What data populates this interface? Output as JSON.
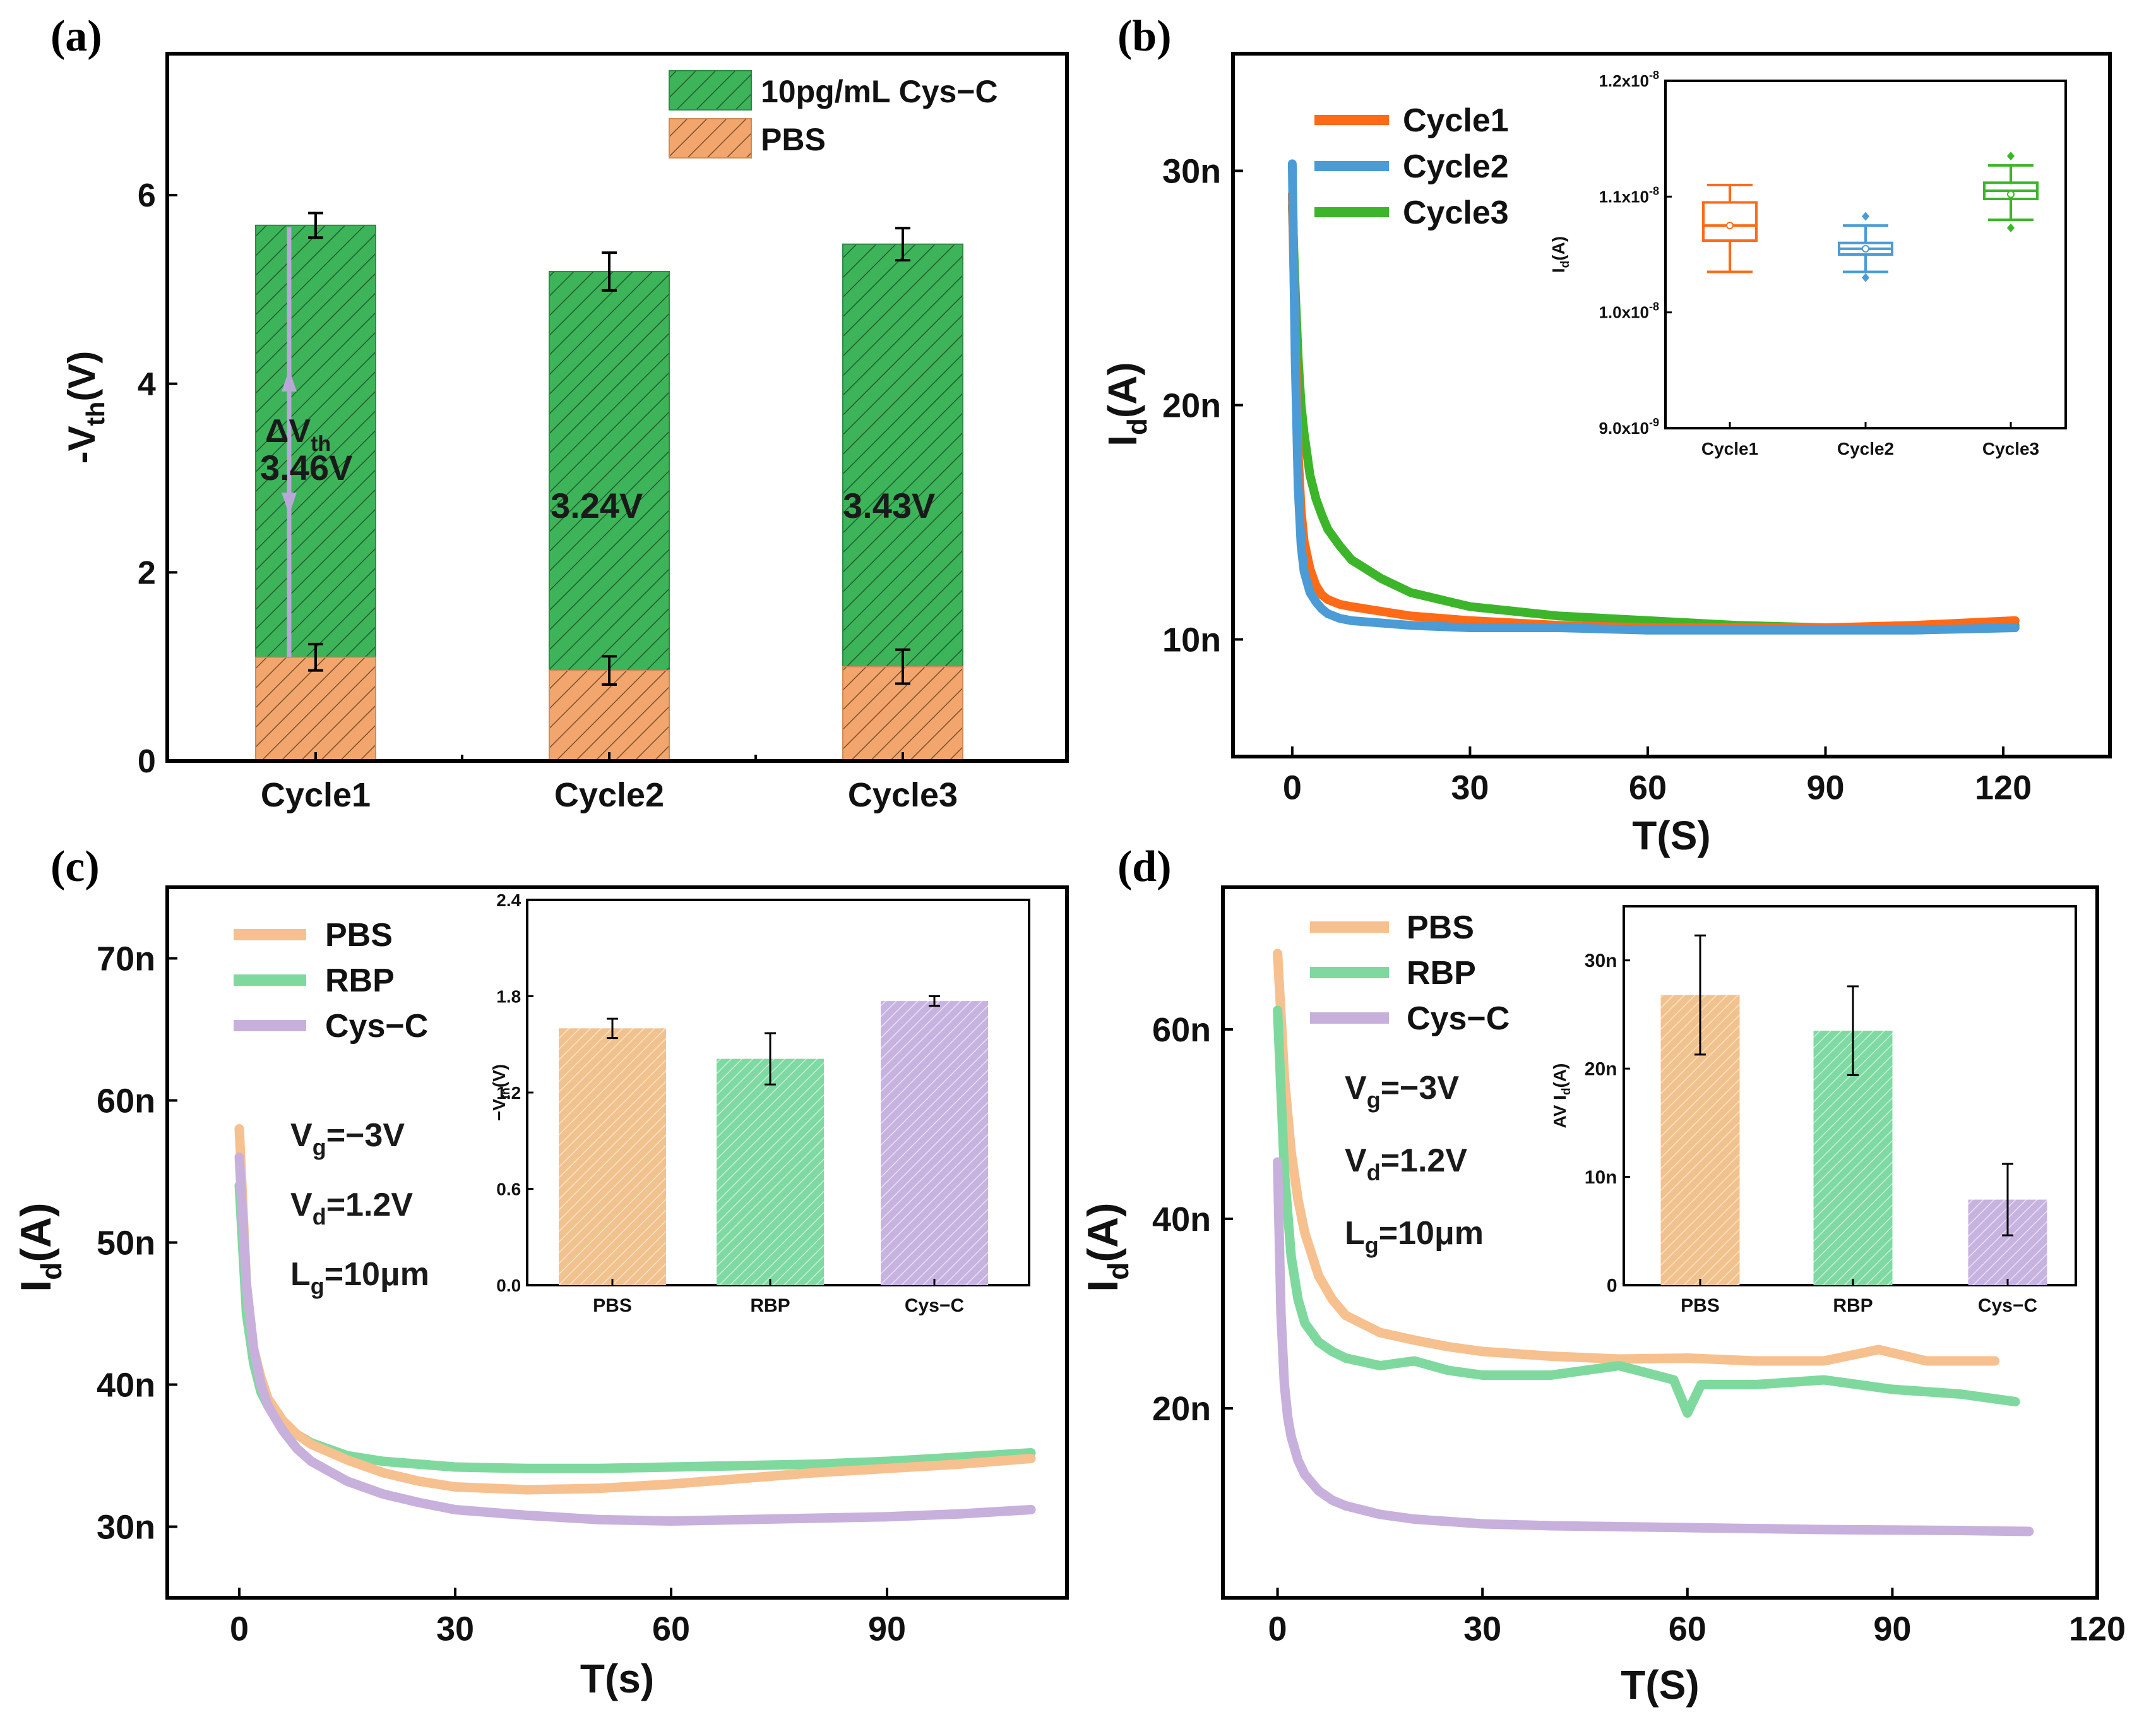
{
  "figure": {
    "panels": [
      "(a)",
      "(b)",
      "(c)",
      "(d)"
    ],
    "annotations_a": {
      "delta_label": "ΔV",
      "delta_sub": "th",
      "cycle1": "3.46V",
      "cycle2": "3.24V",
      "cycle3": "3.43V"
    },
    "conditions": {
      "vg": "V",
      "vg_sub": "g",
      "vg_val": "=−3V",
      "vd": "V",
      "vd_sub": "d",
      "vd_val": "=1.2V",
      "lg": "L",
      "lg_sub": "g",
      "lg_val": "=10μm"
    }
  },
  "colors": {
    "cys_green": "#3db35a",
    "pbs_orange": "#f2a66d",
    "cycle1": "#ff6a17",
    "cycle2": "#4a9bd6",
    "cycle3": "#3cb52a",
    "pbs_line": "#f7c08f",
    "rbp_line": "#7fd99e",
    "cysc_line": "#c7b0dc",
    "pbs_bar": "#f2c28e",
    "rbp_bar": "#7fd9a3",
    "cysc_bar": "#c7b3e0"
  },
  "chart_data": [
    {
      "id": "a",
      "type": "bar",
      "title": "",
      "xlabel": "",
      "ylabel": "-V",
      "ylabel_sub": "th",
      "ylabel_tail": "(V)",
      "categories": [
        "Cycle1",
        "Cycle2",
        "Cycle3"
      ],
      "ylim": [
        0,
        7.5
      ],
      "yticks": [
        0,
        2,
        4,
        6
      ],
      "ytick_labels": [
        "0",
        "2",
        "4",
        "6"
      ],
      "series": [
        {
          "name": "PBS",
          "values": [
            1.1,
            0.96,
            1.0
          ],
          "errors": [
            0.14,
            0.15,
            0.18
          ]
        },
        {
          "name": "10pg/mL Cys−C",
          "values": [
            5.68,
            5.19,
            5.48
          ],
          "errors": [
            0.13,
            0.2,
            0.17
          ]
        }
      ],
      "legend": [
        "10pg/mL Cys−C",
        "PBS"
      ]
    },
    {
      "id": "b",
      "type": "line",
      "xlabel": "T(S)",
      "ylabel": "I",
      "ylabel_sub": "d",
      "ylabel_tail": "(A)",
      "xlim": [
        -10,
        138
      ],
      "ylim": [
        5,
        35
      ],
      "xticks": [
        0,
        30,
        60,
        90,
        120
      ],
      "yticks": [
        10,
        20,
        30
      ],
      "ytick_labels": [
        "10n",
        "20n",
        "30n"
      ],
      "series": [
        {
          "name": "Cycle1",
          "x": [
            0,
            0.5,
            1,
            1.5,
            2,
            3,
            4,
            5,
            6,
            8,
            10,
            15,
            20,
            30,
            45,
            60,
            75,
            90,
            105,
            122
          ],
          "y": [
            29.0,
            23.0,
            18.0,
            15.5,
            14.2,
            13.0,
            12.3,
            11.9,
            11.7,
            11.5,
            11.4,
            11.2,
            11.0,
            10.8,
            10.6,
            10.5,
            10.5,
            10.5,
            10.6,
            10.8
          ]
        },
        {
          "name": "Cycle2",
          "x": [
            0,
            0.5,
            1,
            1.5,
            2,
            3,
            4,
            5,
            6,
            8,
            10,
            15,
            20,
            30,
            45,
            60,
            75,
            90,
            105,
            122
          ],
          "y": [
            30.3,
            22.0,
            16.5,
            14.0,
            12.9,
            12.0,
            11.6,
            11.3,
            11.1,
            10.9,
            10.8,
            10.7,
            10.6,
            10.5,
            10.5,
            10.4,
            10.4,
            10.4,
            10.4,
            10.5
          ]
        },
        {
          "name": "Cycle3",
          "x": [
            0,
            0.5,
            1,
            1.5,
            2,
            3,
            4,
            5,
            6,
            8,
            10,
            15,
            20,
            30,
            45,
            60,
            75,
            90,
            105,
            122
          ],
          "y": [
            28.5,
            25.0,
            22.0,
            20.0,
            18.8,
            17.0,
            16.0,
            15.3,
            14.7,
            14.0,
            13.4,
            12.6,
            12.0,
            11.4,
            11.0,
            10.8,
            10.6,
            10.5,
            10.5,
            10.6
          ]
        }
      ],
      "legend": [
        "Cycle1",
        "Cycle2",
        "Cycle3"
      ],
      "inset": {
        "type": "box",
        "ylabel": "I",
        "ylabel_sub": "d",
        "ylabel_tail": "(A)",
        "categories": [
          "Cycle1",
          "Cycle2",
          "Cycle3"
        ],
        "ylim": [
          9e-09,
          1.2e-08
        ],
        "yticks": [
          9e-09,
          1e-08,
          1.1e-08,
          1.2e-08
        ],
        "ytick_labels": [
          [
            "9.0x10",
            "-9"
          ],
          [
            "1.0x10",
            "-8"
          ],
          [
            "1.1x10",
            "-8"
          ],
          [
            "1.2x10",
            "-8"
          ]
        ],
        "boxes": [
          {
            "name": "Cycle1",
            "min": 1.035e-08,
            "q1": 1.062e-08,
            "median": 1.075e-08,
            "mean": 1.075e-08,
            "q3": 1.095e-08,
            "max": 1.11e-08,
            "outliers": []
          },
          {
            "name": "Cycle2",
            "min": 1.035e-08,
            "q1": 1.05e-08,
            "median": 1.055e-08,
            "mean": 1.055e-08,
            "q3": 1.06e-08,
            "max": 1.075e-08,
            "outliers": [
              1.083e-08,
              1.03e-08
            ]
          },
          {
            "name": "Cycle3",
            "min": 1.08e-08,
            "q1": 1.098e-08,
            "median": 1.105e-08,
            "mean": 1.102e-08,
            "q3": 1.112e-08,
            "max": 1.127e-08,
            "outliers": [
              1.135e-08,
              1.073e-08
            ]
          }
        ]
      }
    },
    {
      "id": "c",
      "type": "line",
      "xlabel": "T(s)",
      "ylabel": "I",
      "ylabel_sub": "d",
      "ylabel_tail": "(A)",
      "xlim": [
        -10,
        115
      ],
      "ylim": [
        25,
        75
      ],
      "xticks": [
        0,
        30,
        60,
        90
      ],
      "yticks": [
        30,
        40,
        50,
        60,
        70
      ],
      "ytick_labels": [
        "30n",
        "40n",
        "50n",
        "60n",
        "70n"
      ],
      "series": [
        {
          "name": "PBS",
          "x": [
            0,
            1,
            2,
            3,
            4,
            6,
            8,
            10,
            15,
            20,
            25,
            30,
            40,
            50,
            60,
            70,
            80,
            90,
            100,
            110
          ],
          "y": [
            58,
            47,
            42.5,
            40.5,
            39,
            37.5,
            36.5,
            35.8,
            34.7,
            33.8,
            33.2,
            32.8,
            32.6,
            32.7,
            33.0,
            33.4,
            33.8,
            34.1,
            34.4,
            34.8
          ]
        },
        {
          "name": "RBP",
          "x": [
            0,
            1,
            2,
            3,
            4,
            6,
            8,
            10,
            15,
            20,
            25,
            30,
            40,
            50,
            60,
            70,
            80,
            90,
            100,
            110
          ],
          "y": [
            54,
            45,
            41.5,
            39.5,
            38.5,
            37.3,
            36.5,
            35.9,
            35.0,
            34.6,
            34.4,
            34.2,
            34.1,
            34.1,
            34.2,
            34.3,
            34.4,
            34.6,
            34.9,
            35.2
          ]
        },
        {
          "name": "Cys−C",
          "x": [
            0,
            1,
            2,
            3,
            4,
            6,
            8,
            10,
            15,
            20,
            25,
            30,
            40,
            50,
            60,
            70,
            80,
            90,
            100,
            110
          ],
          "y": [
            56,
            47,
            42.5,
            40,
            38.5,
            36.8,
            35.5,
            34.6,
            33.2,
            32.3,
            31.7,
            31.2,
            30.8,
            30.5,
            30.4,
            30.5,
            30.6,
            30.7,
            30.9,
            31.2
          ]
        }
      ],
      "legend": [
        "PBS",
        "RBP",
        "Cys−C"
      ],
      "inset": {
        "type": "bar",
        "ylabel": "−V",
        "ylabel_sub": "th",
        "ylabel_tail": "(V)",
        "categories": [
          "PBS",
          "RBP",
          "Cys−C"
        ],
        "ylim": [
          0,
          2.4
        ],
        "yticks": [
          0,
          0.6,
          1.2,
          1.8,
          2.4
        ],
        "ytick_labels": [
          "0.0",
          "0.6",
          "1.2",
          "1.8",
          "2.4"
        ],
        "values": [
          1.6,
          1.41,
          1.77
        ],
        "errors": [
          0.06,
          0.16,
          0.03
        ]
      }
    },
    {
      "id": "d",
      "type": "line",
      "xlabel": "T(S)",
      "ylabel": "I",
      "ylabel_sub": "d",
      "ylabel_tail": "(A)",
      "xlim": [
        -8,
        120
      ],
      "ylim": [
        0,
        75
      ],
      "xticks": [
        0,
        30,
        60,
        90,
        120
      ],
      "yticks": [
        20,
        40,
        60
      ],
      "ytick_labels": [
        "20n",
        "40n",
        "60n"
      ],
      "series": [
        {
          "name": "PBS",
          "x": [
            0,
            1,
            2,
            3,
            4,
            6,
            8,
            10,
            15,
            20,
            25,
            30,
            40,
            50,
            60,
            70,
            80,
            88,
            95,
            105
          ],
          "y": [
            68,
            55,
            47,
            42,
            38.5,
            34,
            31.5,
            29.8,
            28,
            27.2,
            26.5,
            26,
            25.5,
            25.2,
            25.3,
            25,
            25,
            26.2,
            25,
            25
          ]
        },
        {
          "name": "RBP",
          "x": [
            0,
            1,
            2,
            3,
            4,
            6,
            8,
            10,
            15,
            20,
            25,
            30,
            40,
            50,
            58,
            60,
            62,
            70,
            80,
            90,
            100,
            108
          ],
          "y": [
            62,
            45,
            36,
            31.5,
            29,
            27,
            26,
            25.3,
            24.5,
            25,
            24,
            23.5,
            23.5,
            24.5,
            23,
            19.5,
            22.5,
            22.5,
            23,
            22,
            21.5,
            20.7
          ]
        },
        {
          "name": "Cys−C",
          "x": [
            0,
            0.5,
            1,
            1.5,
            2,
            3,
            4,
            6,
            8,
            10,
            15,
            20,
            30,
            40,
            60,
            80,
            100,
            110
          ],
          "y": [
            46,
            30,
            22.5,
            19,
            17,
            14.5,
            13,
            11.3,
            10.3,
            9.7,
            8.8,
            8.3,
            7.8,
            7.6,
            7.4,
            7.2,
            7.1,
            7.0
          ]
        }
      ],
      "legend": [
        "PBS",
        "RBP",
        "Cys−C"
      ],
      "inset": {
        "type": "bar",
        "ylabel": "AV I",
        "ylabel_sub": "d",
        "ylabel_tail": "(A)",
        "categories": [
          "PBS",
          "RBP",
          "Cys−C"
        ],
        "ylim": [
          0,
          35
        ],
        "yticks": [
          0,
          10,
          20,
          30
        ],
        "ytick_labels": [
          "0",
          "10n",
          "20n",
          "30n"
        ],
        "values": [
          26.8,
          23.5,
          7.9
        ],
        "errors": [
          5.5,
          4.1,
          3.3
        ]
      }
    }
  ]
}
